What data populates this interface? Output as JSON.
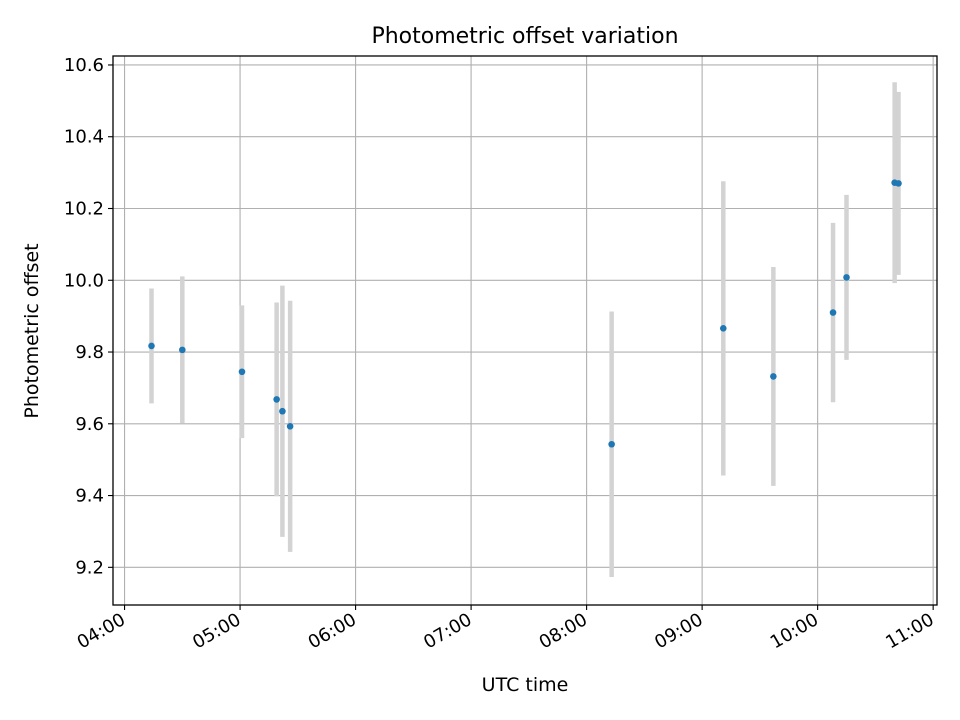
{
  "chart_data": {
    "type": "scatter",
    "title": "Photometric offset variation",
    "xlabel": "UTC time",
    "ylabel": "Photometric offset",
    "xlim": [
      "03:54",
      "11:02"
    ],
    "ylim": [
      9.095,
      10.625
    ],
    "xticks": [
      "04:00",
      "05:00",
      "06:00",
      "07:00",
      "08:00",
      "09:00",
      "10:00",
      "11:00"
    ],
    "yticks": [
      9.2,
      9.4,
      9.6,
      9.8,
      10.0,
      10.2,
      10.4,
      10.6
    ],
    "ytick_labels": [
      "9.2",
      "9.4",
      "9.6",
      "9.8",
      "10.0",
      "10.2",
      "10.4",
      "10.6"
    ],
    "grid": true,
    "marker_color": "#1f77b4",
    "errorbar_color": "#d3d3d3",
    "points": [
      {
        "x": "04:14",
        "y": 9.817,
        "err": 0.16
      },
      {
        "x": "04:30",
        "y": 9.806,
        "err": 0.205
      },
      {
        "x": "05:01",
        "y": 9.745,
        "err": 0.185
      },
      {
        "x": "05:19",
        "y": 9.668,
        "err": 0.27
      },
      {
        "x": "05:22",
        "y": 9.635,
        "err": 0.35
      },
      {
        "x": "05:26",
        "y": 9.593,
        "err": 0.35
      },
      {
        "x": "08:13",
        "y": 9.543,
        "err": 0.37
      },
      {
        "x": "09:11",
        "y": 9.866,
        "err": 0.41
      },
      {
        "x": "09:37",
        "y": 9.732,
        "err": 0.305
      },
      {
        "x": "10:08",
        "y": 9.91,
        "err": 0.25
      },
      {
        "x": "10:15",
        "y": 10.008,
        "err": 0.23
      },
      {
        "x": "10:40",
        "y": 10.272,
        "err": 0.28
      },
      {
        "x": "10:42",
        "y": 10.27,
        "err": 0.255
      }
    ]
  }
}
